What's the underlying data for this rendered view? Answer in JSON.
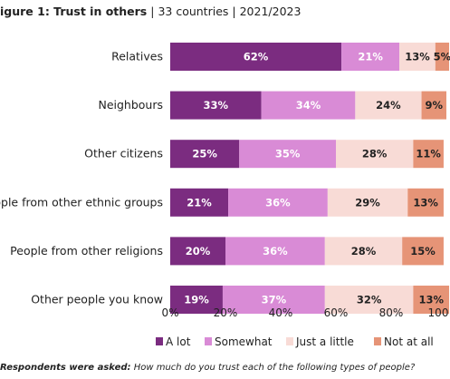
{
  "title": {
    "figure": "igure 1: Trust in others",
    "sep": "|",
    "scope": "33 countries",
    "years": "2021/2023"
  },
  "chart_data": {
    "type": "bar",
    "orientation": "horizontal",
    "stacked": true,
    "categories": [
      "Relatives",
      "Neighbours",
      "Other citizens",
      "People from other ethnic groups",
      "People from other religions",
      "Other people you know"
    ],
    "series": [
      {
        "name": "A lot",
        "color": "#7b2c80",
        "values": [
          62,
          33,
          25,
          21,
          20,
          19
        ]
      },
      {
        "name": "Somewhat",
        "color": "#d98bd6",
        "values": [
          21,
          34,
          35,
          36,
          36,
          37
        ]
      },
      {
        "name": "Just a little",
        "color": "#f8dbd6",
        "values": [
          13,
          24,
          28,
          29,
          28,
          32
        ]
      },
      {
        "name": "Not at all",
        "color": "#e69477",
        "values": [
          5,
          9,
          11,
          13,
          15,
          13
        ]
      }
    ],
    "value_labels": [
      [
        "62%",
        "21%",
        "13%",
        "5%"
      ],
      [
        "33%",
        "34%",
        "24%",
        "9%"
      ],
      [
        "25%",
        "35%",
        "28%",
        "11%"
      ],
      [
        "21%",
        "36%",
        "29%",
        "13%"
      ],
      [
        "20%",
        "36%",
        "28%",
        "15%"
      ],
      [
        "19%",
        "37%",
        "32%",
        "13%"
      ]
    ],
    "label_colors": [
      "#ffffff",
      "#ffffff",
      "#222222",
      "#222222"
    ],
    "xlim": [
      0,
      100
    ],
    "xticks": [
      "0%",
      "20%",
      "40%",
      "60%",
      "80%",
      "100"
    ],
    "legend_position": "bottom",
    "grid": false
  },
  "note": {
    "label": "Respondents were asked:",
    "question": "How much do you trust each of the following types of people?"
  }
}
